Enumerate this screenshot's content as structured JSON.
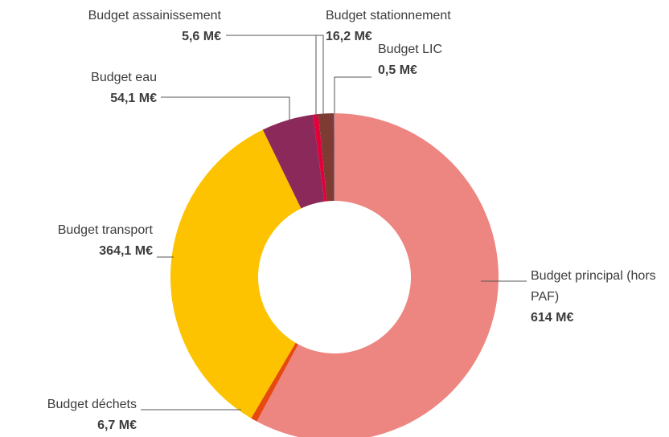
{
  "chart_data": {
    "type": "donut",
    "categories": [
      "Budget principal (hors PAF)",
      "Budget déchets",
      "Budget transport",
      "Budget eau",
      "Budget assainissement",
      "Budget stationnement",
      "Budget LIC"
    ],
    "values": [
      614,
      6.7,
      364.1,
      54.1,
      5.6,
      16.2,
      0.5
    ],
    "value_labels": [
      "614 M€",
      "6,7 M€",
      "364,1 M€",
      "54,1 M€",
      "5,6 M€",
      "16,2 M€",
      "0,5 M€"
    ],
    "colors": [
      "#ed8580",
      "#e8490f",
      "#fdc300",
      "#8b2a5a",
      "#e2003b",
      "#7d3b33",
      "#8f8fc0"
    ]
  }
}
